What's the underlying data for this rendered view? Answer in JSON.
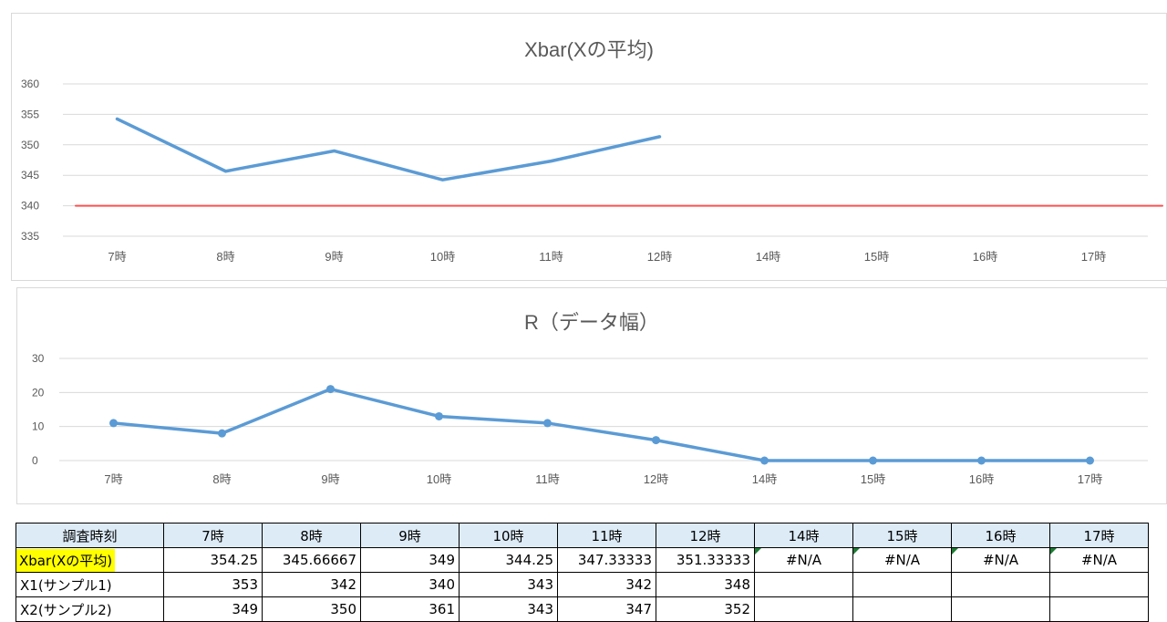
{
  "chart_data": [
    {
      "type": "line",
      "title": "Xbar(Xの平均)",
      "categories": [
        "7時",
        "8時",
        "9時",
        "10時",
        "11時",
        "12時",
        "14時",
        "15時",
        "16時",
        "17時"
      ],
      "series": [
        {
          "values": [
            354.25,
            345.66667,
            349,
            344.25,
            347.33333,
            351.33333,
            null,
            null,
            null,
            null
          ],
          "color": "#5b9bd5",
          "markers": false
        },
        {
          "values": [
            340,
            340,
            340,
            340,
            340,
            340,
            340,
            340,
            340,
            340
          ],
          "color": "#ff5050",
          "markers": false
        }
      ],
      "ylim": [
        335,
        360
      ],
      "yticks": [
        335,
        340,
        345,
        350,
        355,
        360
      ],
      "grid": true
    },
    {
      "type": "line",
      "title": "R（データ幅）",
      "categories": [
        "7時",
        "8時",
        "9時",
        "10時",
        "11時",
        "12時",
        "14時",
        "15時",
        "16時",
        "17時"
      ],
      "series": [
        {
          "values": [
            11,
            8,
            21,
            13,
            11,
            6,
            0,
            0,
            0,
            0
          ],
          "color": "#5b9bd5",
          "markers": true
        }
      ],
      "ylim": [
        0,
        30
      ],
      "yticks": [
        0,
        10,
        20,
        30
      ],
      "grid": true
    }
  ],
  "table": {
    "header": [
      "調査時刻",
      "7時",
      "8時",
      "9時",
      "10時",
      "11時",
      "12時",
      "14時",
      "15時",
      "16時",
      "17時"
    ],
    "rows": [
      [
        "Xbar(Xの平均)",
        "354.25",
        "345.66667",
        "349",
        "344.25",
        "347.33333",
        "351.33333",
        "#N/A",
        "#N/A",
        "#N/A",
        "#N/A"
      ],
      [
        "X1(サンプル1)",
        "353",
        "342",
        "340",
        "343",
        "342",
        "348",
        "",
        "",
        "",
        ""
      ],
      [
        "X2(サンプル2)",
        "349",
        "350",
        "361",
        "343",
        "347",
        "352",
        "",
        "",
        "",
        ""
      ]
    ],
    "highlight_color": "#ffff00",
    "header_bg": "#ddebf7"
  }
}
